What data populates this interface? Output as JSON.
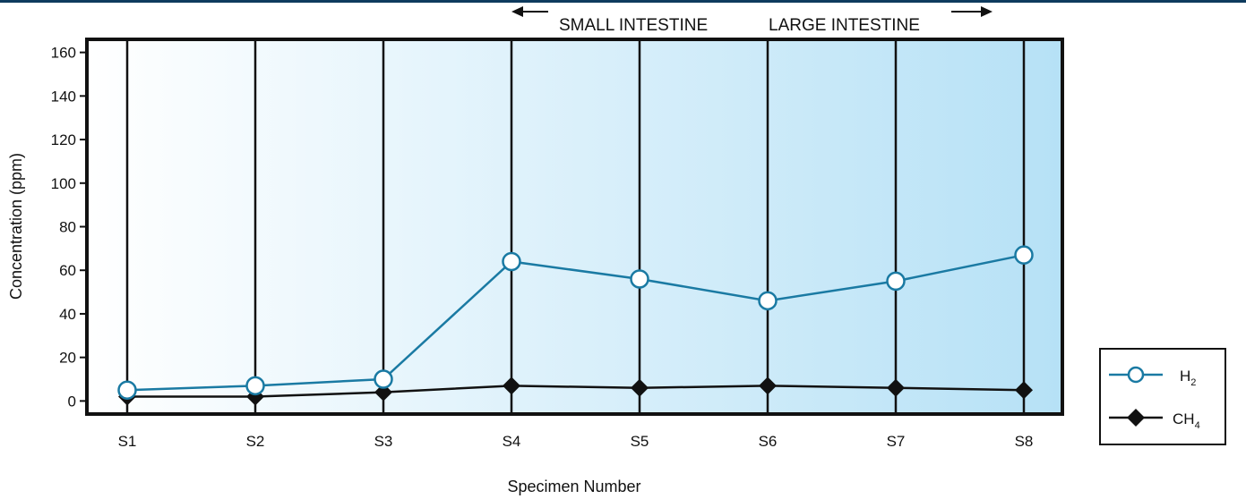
{
  "colors": {
    "h2_line": "#1a7aa3",
    "ch4_line": "#111111",
    "frame": "#111111",
    "gradient_start": "#ffffff",
    "gradient_end": "#b6e1f6",
    "top_rule": "#0e3b5e"
  },
  "chart_data": {
    "type": "line",
    "title": "",
    "xlabel": "Specimen Number",
    "ylabel": "Concentration (ppm)",
    "categories": [
      "S1",
      "S2",
      "S3",
      "S4",
      "S5",
      "S6",
      "S7",
      "S8"
    ],
    "ylim": [
      -6,
      166
    ],
    "yticks": [
      0,
      20,
      40,
      60,
      80,
      100,
      120,
      140,
      160
    ],
    "grid": "vertical lines at each specimen",
    "legend_position": "right, outside plot",
    "series": [
      {
        "name": "H",
        "subscript": "2",
        "marker": "open-circle",
        "values": [
          5,
          7,
          10,
          64,
          56,
          46,
          55,
          67
        ]
      },
      {
        "name": "CH",
        "subscript": "4",
        "marker": "filled-diamond",
        "values": [
          2,
          2,
          4,
          7,
          6,
          7,
          6,
          5
        ]
      }
    ],
    "annotations": {
      "left_region": "SMALL INTESTINE",
      "right_region": "LARGE INTESTINE"
    }
  }
}
